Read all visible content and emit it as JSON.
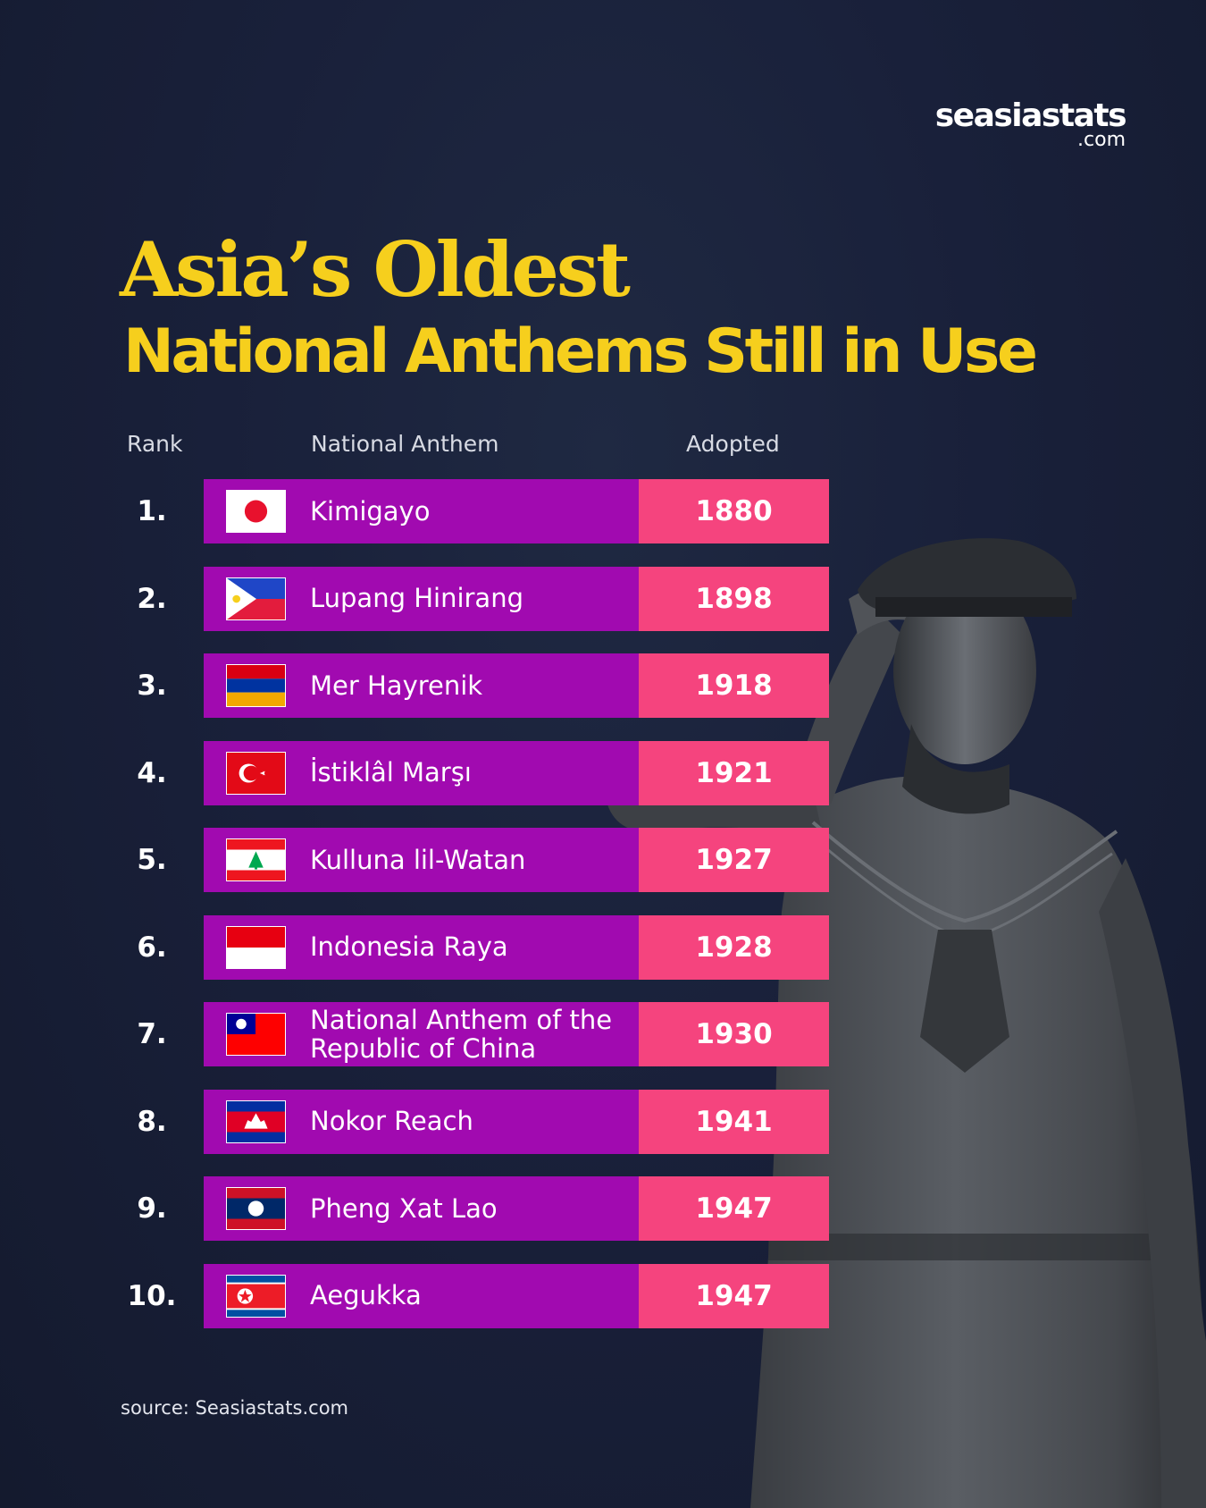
{
  "logo": {
    "main": "seasiastats",
    "sub": ".com"
  },
  "title": {
    "line1": "Asia’s Oldest",
    "line2": "National Anthems Still in Use"
  },
  "columns": {
    "rank": "Rank",
    "anthem": "National Anthem",
    "adopted": "Adopted"
  },
  "source": "source: Seasiastats.com",
  "colors": {
    "background": "#19203a",
    "title": "#f6cf1d",
    "name_bar": "#a10ab0",
    "year_bar": "#f5447e"
  },
  "chart_data": {
    "type": "table",
    "columns": [
      "Rank",
      "National Anthem",
      "Adopted"
    ],
    "rows": [
      {
        "rank": "1.",
        "anthem": "Kimigayo",
        "adopted": "1880",
        "flag": "japan-flag-icon"
      },
      {
        "rank": "2.",
        "anthem": "Lupang Hinirang",
        "adopted": "1898",
        "flag": "philippines-flag-icon"
      },
      {
        "rank": "3.",
        "anthem": "Mer Hayrenik",
        "adopted": "1918",
        "flag": "armenia-flag-icon"
      },
      {
        "rank": "4.",
        "anthem": "İstiklâl Marşı",
        "adopted": "1921",
        "flag": "turkey-flag-icon"
      },
      {
        "rank": "5.",
        "anthem": "Kulluna lil-Watan",
        "adopted": "1927",
        "flag": "lebanon-flag-icon"
      },
      {
        "rank": "6.",
        "anthem": "Indonesia Raya",
        "adopted": "1928",
        "flag": "indonesia-flag-icon"
      },
      {
        "rank": "7.",
        "anthem": "National Anthem of the Republic of China",
        "adopted": "1930",
        "flag": "taiwan-flag-icon"
      },
      {
        "rank": "8.",
        "anthem": "Nokor Reach",
        "adopted": "1941",
        "flag": "cambodia-flag-icon"
      },
      {
        "rank": "9.",
        "anthem": "Pheng Xat Lao",
        "adopted": "1947",
        "flag": "laos-flag-icon"
      },
      {
        "rank": "10.",
        "anthem": "Aegukka",
        "adopted": "1947",
        "flag": "north-korea-flag-icon"
      }
    ]
  }
}
